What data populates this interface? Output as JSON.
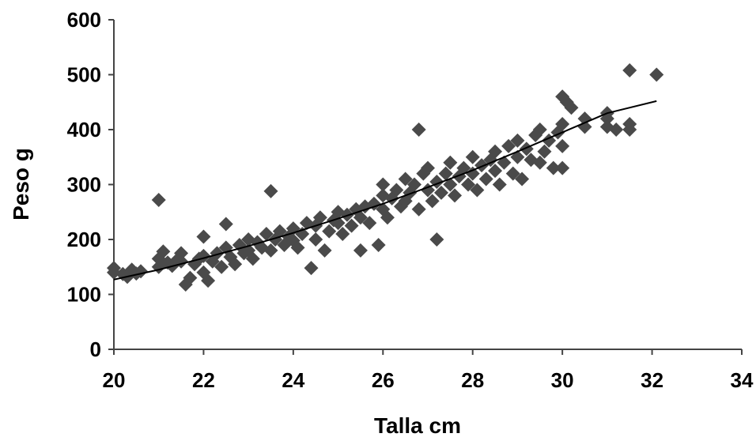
{
  "chart_data": {
    "type": "scatter",
    "xlabel": "Talla cm",
    "ylabel": "Peso g",
    "xlim": [
      20,
      34
    ],
    "ylim": [
      0,
      600
    ],
    "x_ticks": [
      20,
      22,
      24,
      26,
      28,
      30,
      32,
      34
    ],
    "y_ticks": [
      0,
      100,
      200,
      300,
      400,
      500,
      600
    ],
    "grid": false,
    "marker": "diamond",
    "marker_color": "#4a4a4a",
    "trendline": {
      "type": "power",
      "color": "#000000",
      "x": [
        20,
        21,
        22,
        23,
        24,
        25,
        26,
        27,
        28,
        29,
        30,
        31,
        32.1
      ],
      "y": [
        127,
        145,
        166,
        188,
        212,
        238,
        265,
        295,
        326,
        360,
        395,
        430,
        452
      ]
    },
    "series": [
      {
        "points": [
          [
            20.0,
            140
          ],
          [
            20.0,
            148
          ],
          [
            20.2,
            137
          ],
          [
            20.3,
            132
          ],
          [
            20.4,
            145
          ],
          [
            20.5,
            138
          ],
          [
            20.6,
            142
          ],
          [
            21.0,
            272
          ],
          [
            21.0,
            165
          ],
          [
            21.0,
            150
          ],
          [
            21.1,
            178
          ],
          [
            21.2,
            158
          ],
          [
            21.3,
            152
          ],
          [
            21.4,
            162
          ],
          [
            21.5,
            160
          ],
          [
            21.5,
            175
          ],
          [
            21.6,
            118
          ],
          [
            21.7,
            130
          ],
          [
            21.8,
            155
          ],
          [
            21.9,
            165
          ],
          [
            22.0,
            140
          ],
          [
            22.0,
            170
          ],
          [
            22.0,
            205
          ],
          [
            22.1,
            125
          ],
          [
            22.2,
            160
          ],
          [
            22.3,
            175
          ],
          [
            22.4,
            150
          ],
          [
            22.5,
            228
          ],
          [
            22.5,
            185
          ],
          [
            22.6,
            168
          ],
          [
            22.7,
            155
          ],
          [
            22.8,
            190
          ],
          [
            22.9,
            175
          ],
          [
            23.0,
            180
          ],
          [
            23.0,
            200
          ],
          [
            23.1,
            165
          ],
          [
            23.2,
            195
          ],
          [
            23.3,
            185
          ],
          [
            23.4,
            210
          ],
          [
            23.5,
            288
          ],
          [
            23.5,
            180
          ],
          [
            23.6,
            200
          ],
          [
            23.7,
            215
          ],
          [
            23.8,
            190
          ],
          [
            23.9,
            205
          ],
          [
            24.0,
            198
          ],
          [
            24.0,
            220
          ],
          [
            24.1,
            185
          ],
          [
            24.2,
            210
          ],
          [
            24.3,
            230
          ],
          [
            24.4,
            148
          ],
          [
            24.5,
            225
          ],
          [
            24.5,
            200
          ],
          [
            24.6,
            240
          ],
          [
            24.7,
            180
          ],
          [
            24.8,
            215
          ],
          [
            24.9,
            235
          ],
          [
            25.0,
            230
          ],
          [
            25.0,
            250
          ],
          [
            25.1,
            210
          ],
          [
            25.2,
            245
          ],
          [
            25.3,
            225
          ],
          [
            25.4,
            255
          ],
          [
            25.5,
            180
          ],
          [
            25.5,
            240
          ],
          [
            25.6,
            260
          ],
          [
            25.7,
            230
          ],
          [
            25.8,
            265
          ],
          [
            25.9,
            190
          ],
          [
            26.0,
            255
          ],
          [
            26.0,
            280
          ],
          [
            26.0,
            300
          ],
          [
            26.1,
            240
          ],
          [
            26.2,
            275
          ],
          [
            26.3,
            290
          ],
          [
            26.4,
            260
          ],
          [
            26.5,
            310
          ],
          [
            26.5,
            270
          ],
          [
            26.6,
            285
          ],
          [
            26.7,
            300
          ],
          [
            26.8,
            400
          ],
          [
            26.8,
            255
          ],
          [
            26.9,
            320
          ],
          [
            27.0,
            290
          ],
          [
            27.0,
            330
          ],
          [
            27.1,
            270
          ],
          [
            27.2,
            200
          ],
          [
            27.2,
            305
          ],
          [
            27.3,
            285
          ],
          [
            27.4,
            320
          ],
          [
            27.5,
            300
          ],
          [
            27.5,
            340
          ],
          [
            27.6,
            280
          ],
          [
            27.7,
            315
          ],
          [
            27.8,
            330
          ],
          [
            27.9,
            300
          ],
          [
            28.0,
            320
          ],
          [
            28.0,
            350
          ],
          [
            28.1,
            290
          ],
          [
            28.2,
            335
          ],
          [
            28.3,
            310
          ],
          [
            28.4,
            345
          ],
          [
            28.5,
            325
          ],
          [
            28.5,
            360
          ],
          [
            28.6,
            300
          ],
          [
            28.7,
            340
          ],
          [
            28.8,
            370
          ],
          [
            28.9,
            320
          ],
          [
            29.0,
            350
          ],
          [
            29.0,
            380
          ],
          [
            29.1,
            310
          ],
          [
            29.2,
            365
          ],
          [
            29.3,
            345
          ],
          [
            29.4,
            390
          ],
          [
            29.5,
            340
          ],
          [
            29.5,
            400
          ],
          [
            29.6,
            360
          ],
          [
            29.7,
            380
          ],
          [
            29.8,
            330
          ],
          [
            29.9,
            395
          ],
          [
            30.0,
            460
          ],
          [
            30.0,
            410
          ],
          [
            30.0,
            370
          ],
          [
            30.0,
            330
          ],
          [
            30.1,
            450
          ],
          [
            30.2,
            440
          ],
          [
            30.5,
            420
          ],
          [
            30.5,
            405
          ],
          [
            31.0,
            430
          ],
          [
            31.0,
            420
          ],
          [
            31.0,
            405
          ],
          [
            31.2,
            400
          ],
          [
            31.5,
            508
          ],
          [
            31.5,
            410
          ],
          [
            31.5,
            400
          ],
          [
            32.1,
            500
          ]
        ]
      }
    ]
  }
}
